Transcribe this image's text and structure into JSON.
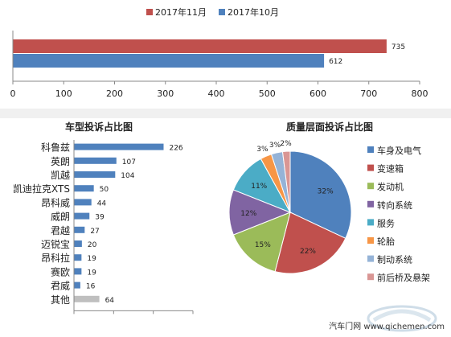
{
  "chart_data": [
    {
      "type": "bar",
      "orientation": "horizontal",
      "series": [
        {
          "name": "2017年11月",
          "color": "#c0504d",
          "values": [
            735
          ]
        },
        {
          "name": "2017年10月",
          "color": "#4f81bd",
          "values": [
            612
          ]
        }
      ],
      "xlim": [
        0,
        800
      ],
      "xticks": [
        "0",
        "100",
        "200",
        "300",
        "400",
        "500",
        "600",
        "700",
        "800"
      ],
      "legend": "top"
    },
    {
      "type": "bar",
      "orientation": "horizontal",
      "title": "车型投诉占比图",
      "categories": [
        "科鲁兹",
        "英朗",
        "凯越",
        "凯迪拉克XTS",
        "昂科威",
        "威朗",
        "君越",
        "迈锐宝",
        "昂科拉",
        "赛欧",
        "君威",
        "其他"
      ],
      "values": [
        226,
        107,
        104,
        50,
        44,
        39,
        27,
        20,
        19,
        19,
        16,
        64
      ],
      "bar_color": "#4f81bd",
      "other_color": "#bfbfbf",
      "xlim": [
        0,
        300
      ],
      "xticks": [
        "0",
        "100",
        "200",
        "300"
      ]
    },
    {
      "type": "pie",
      "title": "质量层面投诉占比图",
      "labels": [
        "车身及电气",
        "变速箱",
        "发动机",
        "转向系统",
        "服务",
        "轮胎",
        "制动系统",
        "前后桥及悬架"
      ],
      "values": [
        32,
        22,
        15,
        12,
        11,
        3,
        3,
        2
      ],
      "value_labels": [
        "32%",
        "22%",
        "15%",
        "12%",
        "11%",
        "3%",
        "3%",
        "2%"
      ],
      "colors": [
        "#4f81bd",
        "#c0504d",
        "#9bbb59",
        "#8064a2",
        "#4bacc6",
        "#f79646",
        "#95b3d7",
        "#d99694"
      ],
      "legend": "right"
    }
  ],
  "watermark": {
    "text": "汽车门网 www.qichemen.com"
  }
}
